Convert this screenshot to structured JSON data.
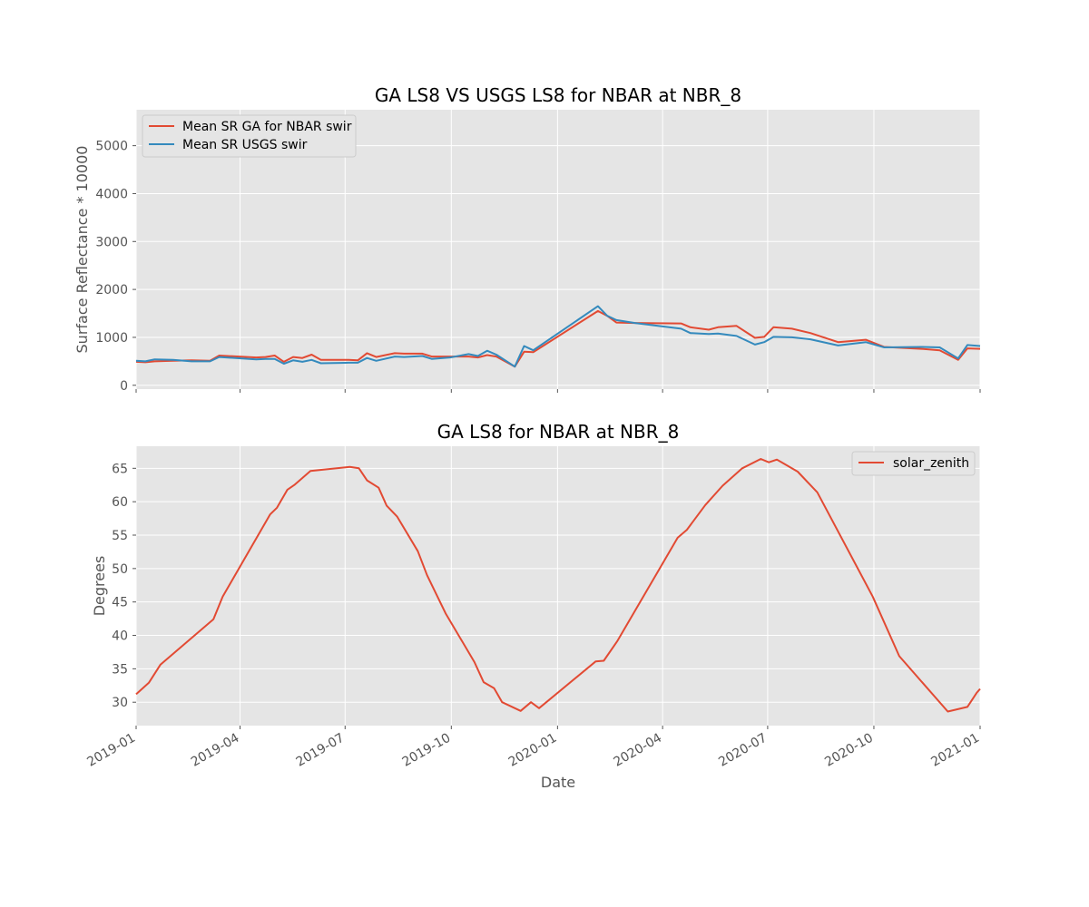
{
  "chart_data": [
    {
      "type": "line",
      "title": "GA LS8 VS USGS LS8 for NBAR at NBR_8",
      "ylabel": "Surface Reflectance * 10000",
      "xlabel": "",
      "xlim": [
        "2019-01-01",
        "2021-01-01"
      ],
      "ylim": [
        -80,
        5750
      ],
      "yticks": [
        0,
        1000,
        2000,
        3000,
        4000,
        5000
      ],
      "grid": true,
      "legend_position": "top-left",
      "series": [
        {
          "name": "Mean SR GA for NBAR swir",
          "color": "#e24a33",
          "points": [
            [
              "2019-01-01",
              490
            ],
            [
              "2019-01-09",
              480
            ],
            [
              "2019-01-17",
              500
            ],
            [
              "2019-02-02",
              510
            ],
            [
              "2019-02-18",
              520
            ],
            [
              "2019-03-06",
              510
            ],
            [
              "2019-03-14",
              620
            ],
            [
              "2019-04-15",
              580
            ],
            [
              "2019-04-23",
              590
            ],
            [
              "2019-05-01",
              620
            ],
            [
              "2019-05-09",
              490
            ],
            [
              "2019-05-17",
              590
            ],
            [
              "2019-05-25",
              570
            ],
            [
              "2019-06-02",
              640
            ],
            [
              "2019-06-10",
              530
            ],
            [
              "2019-07-04",
              530
            ],
            [
              "2019-07-12",
              520
            ],
            [
              "2019-07-20",
              670
            ],
            [
              "2019-07-28",
              590
            ],
            [
              "2019-08-13",
              670
            ],
            [
              "2019-08-21",
              660
            ],
            [
              "2019-09-06",
              660
            ],
            [
              "2019-09-14",
              600
            ],
            [
              "2019-09-30",
              600
            ],
            [
              "2019-10-16",
              600
            ],
            [
              "2019-10-24",
              580
            ],
            [
              "2019-11-01",
              630
            ],
            [
              "2019-11-09",
              600
            ],
            [
              "2019-11-25",
              390
            ],
            [
              "2019-12-03",
              700
            ],
            [
              "2019-12-11",
              690
            ],
            [
              "2020-02-05",
              1550
            ],
            [
              "2020-02-13",
              1450
            ],
            [
              "2020-02-21",
              1310
            ],
            [
              "2020-03-08",
              1300
            ],
            [
              "2020-04-17",
              1290
            ],
            [
              "2020-04-25",
              1210
            ],
            [
              "2020-05-11",
              1160
            ],
            [
              "2020-05-19",
              1210
            ],
            [
              "2020-06-04",
              1240
            ],
            [
              "2020-06-20",
              990
            ],
            [
              "2020-06-28",
              1010
            ],
            [
              "2020-07-06",
              1210
            ],
            [
              "2020-07-22",
              1180
            ],
            [
              "2020-08-07",
              1090
            ],
            [
              "2020-08-31",
              900
            ],
            [
              "2020-09-24",
              950
            ],
            [
              "2020-10-10",
              800
            ],
            [
              "2020-11-11",
              760
            ],
            [
              "2020-11-27",
              730
            ],
            [
              "2020-12-13",
              530
            ],
            [
              "2020-12-21",
              770
            ],
            [
              "2021-01-01",
              760
            ]
          ]
        },
        {
          "name": "Mean SR USGS swir",
          "color": "#348abd",
          "points": [
            [
              "2019-01-01",
              510
            ],
            [
              "2019-01-09",
              500
            ],
            [
              "2019-01-17",
              540
            ],
            [
              "2019-02-02",
              530
            ],
            [
              "2019-02-18",
              500
            ],
            [
              "2019-03-06",
              500
            ],
            [
              "2019-03-14",
              590
            ],
            [
              "2019-04-15",
              540
            ],
            [
              "2019-04-23",
              550
            ],
            [
              "2019-05-01",
              550
            ],
            [
              "2019-05-09",
              450
            ],
            [
              "2019-05-17",
              520
            ],
            [
              "2019-05-25",
              490
            ],
            [
              "2019-06-02",
              530
            ],
            [
              "2019-06-10",
              460
            ],
            [
              "2019-07-04",
              470
            ],
            [
              "2019-07-12",
              470
            ],
            [
              "2019-07-20",
              570
            ],
            [
              "2019-07-28",
              510
            ],
            [
              "2019-08-13",
              600
            ],
            [
              "2019-08-21",
              590
            ],
            [
              "2019-09-06",
              610
            ],
            [
              "2019-09-14",
              550
            ],
            [
              "2019-09-30",
              580
            ],
            [
              "2019-10-16",
              650
            ],
            [
              "2019-10-24",
              610
            ],
            [
              "2019-11-01",
              720
            ],
            [
              "2019-11-09",
              640
            ],
            [
              "2019-11-25",
              390
            ],
            [
              "2019-12-03",
              820
            ],
            [
              "2019-12-11",
              730
            ],
            [
              "2020-02-05",
              1650
            ],
            [
              "2020-02-13",
              1450
            ],
            [
              "2020-02-21",
              1360
            ],
            [
              "2020-03-08",
              1300
            ],
            [
              "2020-04-17",
              1180
            ],
            [
              "2020-04-25",
              1090
            ],
            [
              "2020-05-11",
              1070
            ],
            [
              "2020-05-19",
              1080
            ],
            [
              "2020-06-04",
              1030
            ],
            [
              "2020-06-20",
              850
            ],
            [
              "2020-06-28",
              900
            ],
            [
              "2020-07-06",
              1010
            ],
            [
              "2020-07-22",
              1000
            ],
            [
              "2020-08-07",
              960
            ],
            [
              "2020-08-31",
              830
            ],
            [
              "2020-09-24",
              900
            ],
            [
              "2020-10-10",
              790
            ],
            [
              "2020-11-11",
              800
            ],
            [
              "2020-11-27",
              790
            ],
            [
              "2020-12-13",
              560
            ],
            [
              "2020-12-21",
              840
            ],
            [
              "2021-01-01",
              820
            ]
          ]
        }
      ]
    },
    {
      "type": "line",
      "title": "GA LS8 for NBAR at NBR_8",
      "ylabel": "Degrees",
      "xlabel": "Date",
      "xlim": [
        "2019-01-01",
        "2021-01-01"
      ],
      "ylim": [
        26.5,
        68.3
      ],
      "yticks": [
        30,
        35,
        40,
        45,
        50,
        55,
        60,
        65
      ],
      "xtick_labels": [
        "2019-01",
        "2019-04",
        "2019-07",
        "2019-10",
        "2020-01",
        "2020-04",
        "2020-07",
        "2020-10",
        "2021-01"
      ],
      "grid": true,
      "legend_position": "top-right",
      "series": [
        {
          "name": "solar_zenith",
          "color": "#e24a33",
          "points": [
            [
              "2019-01-01",
              31.2
            ],
            [
              "2019-01-12",
              32.9
            ],
            [
              "2019-01-22",
              35.6
            ],
            [
              "2019-03-09",
              42.4
            ],
            [
              "2019-03-17",
              45.8
            ],
            [
              "2019-04-27",
              58.1
            ],
            [
              "2019-05-03",
              59.1
            ],
            [
              "2019-05-12",
              61.8
            ],
            [
              "2019-05-18",
              62.5
            ],
            [
              "2019-06-01",
              64.6
            ],
            [
              "2019-07-05",
              65.2
            ],
            [
              "2019-07-13",
              65.0
            ],
            [
              "2019-07-20",
              63.2
            ],
            [
              "2019-07-30",
              62.1
            ],
            [
              "2019-08-06",
              59.4
            ],
            [
              "2019-08-15",
              57.8
            ],
            [
              "2019-09-02",
              52.6
            ],
            [
              "2019-09-10",
              49.0
            ],
            [
              "2019-09-26",
              43.3
            ],
            [
              "2019-10-21",
              36.0
            ],
            [
              "2019-10-29",
              33.0
            ],
            [
              "2019-11-07",
              32.1
            ],
            [
              "2019-11-14",
              30.0
            ],
            [
              "2019-11-30",
              28.7
            ],
            [
              "2019-12-09",
              30.0
            ],
            [
              "2019-12-16",
              29.1
            ],
            [
              "2020-02-03",
              36.1
            ],
            [
              "2020-02-10",
              36.2
            ],
            [
              "2020-02-22",
              39.2
            ],
            [
              "2020-04-14",
              54.6
            ],
            [
              "2020-04-22",
              55.8
            ],
            [
              "2020-05-08",
              59.5
            ],
            [
              "2020-05-23",
              62.4
            ],
            [
              "2020-06-09",
              65.0
            ],
            [
              "2020-06-25",
              66.4
            ],
            [
              "2020-07-02",
              65.9
            ],
            [
              "2020-07-09",
              66.3
            ],
            [
              "2020-07-27",
              64.5
            ],
            [
              "2020-08-13",
              61.4
            ],
            [
              "2020-09-30",
              45.8
            ],
            [
              "2020-10-23",
              36.9
            ],
            [
              "2020-12-04",
              28.6
            ],
            [
              "2020-12-21",
              29.3
            ],
            [
              "2020-12-29",
              31.4
            ],
            [
              "2021-01-01",
              32.0
            ]
          ]
        }
      ]
    }
  ]
}
